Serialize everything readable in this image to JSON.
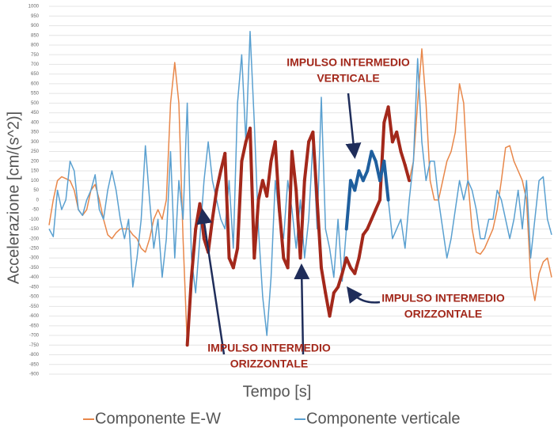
{
  "chart_data": {
    "type": "line",
    "ylabel": "Accelerazione [cm/(s^2)]",
    "xlabel": "Tempo [s]",
    "ylim": [
      -900,
      1000
    ],
    "yticks": [
      1000,
      950,
      900,
      850,
      800,
      750,
      700,
      650,
      600,
      550,
      500,
      450,
      400,
      350,
      300,
      250,
      200,
      150,
      100,
      50,
      0,
      -50,
      -100,
      -150,
      -200,
      -250,
      -300,
      -350,
      -400,
      -450,
      -500,
      -550,
      -600,
      -650,
      -700,
      -750,
      -800,
      -850,
      -900
    ],
    "grid": true,
    "legend": "bottom",
    "series": [
      {
        "name": "Componente E-W",
        "color": "#e8874a",
        "values": [
          -130,
          0,
          100,
          120,
          110,
          100,
          50,
          -50,
          -80,
          -50,
          50,
          80,
          0,
          -100,
          -180,
          -200,
          -170,
          -150,
          -150,
          -150,
          -180,
          -200,
          -250,
          -270,
          -200,
          -100,
          -50,
          -100,
          0,
          500,
          710,
          500,
          -200,
          -750,
          -400,
          -150,
          -20,
          -200,
          -270,
          -100,
          50,
          150,
          240,
          -300,
          -350,
          -250,
          200,
          300,
          370,
          -300,
          0,
          100,
          20,
          200,
          300,
          -50,
          -300,
          -350,
          250,
          50,
          -300,
          100,
          300,
          350,
          0,
          -350,
          -480,
          -600,
          -480,
          -450,
          -380,
          -300,
          -350,
          -380,
          -300,
          -180,
          -150,
          -100,
          -50,
          0,
          400,
          480,
          300,
          350,
          250,
          180,
          100,
          200,
          500,
          780,
          500,
          100,
          0,
          0,
          100,
          200,
          250,
          350,
          600,
          500,
          100,
          -150,
          -270,
          -280,
          -250,
          -200,
          -150,
          -50,
          100,
          270,
          280,
          200,
          150,
          100,
          0,
          -400,
          -520,
          -380,
          -320,
          -300,
          -400
        ]
      },
      {
        "name": "Componente verticale",
        "color": "#5aa0d0",
        "values": [
          -150,
          -190,
          50,
          -50,
          0,
          200,
          150,
          -50,
          -80,
          0,
          50,
          130,
          -50,
          -100,
          50,
          150,
          50,
          -100,
          -200,
          -100,
          -450,
          -300,
          -100,
          280,
          0,
          -250,
          -100,
          -400,
          -200,
          250,
          -300,
          100,
          -100,
          500,
          -300,
          -480,
          -200,
          100,
          300,
          100,
          0,
          -100,
          -150,
          100,
          -250,
          500,
          750,
          300,
          870,
          400,
          -150,
          -500,
          -700,
          -400,
          100,
          -100,
          -200,
          100,
          -50,
          -250,
          0,
          -300,
          -100,
          300,
          -150,
          530,
          -150,
          -250,
          -400,
          -100,
          -420,
          -150,
          100,
          50,
          150,
          100,
          150,
          250,
          200,
          100,
          200,
          0,
          -200,
          -150,
          -100,
          -250,
          0,
          200,
          730,
          300,
          100,
          200,
          200,
          0,
          -150,
          -300,
          -200,
          -50,
          100,
          0,
          100,
          50,
          -50,
          -200,
          -200,
          -100,
          -100,
          50,
          0,
          -100,
          -200,
          -100,
          50,
          -150,
          100,
          -300,
          -100,
          100,
          120,
          -100,
          -180
        ]
      }
    ],
    "highlights": [
      {
        "series": 0,
        "from": 33,
        "to": 86,
        "color": "#a3281b"
      },
      {
        "series": 1,
        "from": 71,
        "to": 81,
        "color": "#1f5f9e"
      }
    ],
    "annotations": [
      {
        "lines": [
          "IMPULSO INTERMEDIO",
          "VERTICALE"
        ],
        "color": "#a3281b"
      },
      {
        "lines": [
          "IMPULSO INTERMEDIO",
          "ORIZZONTALE"
        ],
        "color": "#a3281b"
      },
      {
        "lines": [
          "IMPULSO INTERMEDIO",
          "ORIZZONTALE"
        ],
        "color": "#a3281b"
      }
    ]
  }
}
